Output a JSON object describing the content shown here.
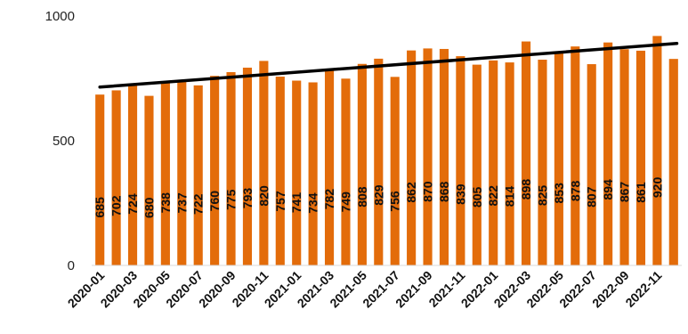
{
  "chart_data": {
    "type": "bar",
    "title": "",
    "xlabel": "",
    "ylabel": "",
    "ylim": [
      0,
      1000
    ],
    "yticks": [
      0,
      500,
      1000
    ],
    "grid": false,
    "legend": "none",
    "bar_color": "#E36C0A",
    "trendline_color": "#000000",
    "trendline": {
      "type": "linear",
      "start": 715,
      "end": 890
    },
    "categories": [
      "2020-01",
      "2020-02",
      "2020-03",
      "2020-04",
      "2020-05",
      "2020-06",
      "2020-07",
      "2020-08",
      "2020-09",
      "2020-10",
      "2020-11",
      "2020-12",
      "2021-01",
      "2021-02",
      "2021-03",
      "2021-04",
      "2021-05",
      "2021-06",
      "2021-07",
      "2021-08",
      "2021-09",
      "2021-10",
      "2021-11",
      "2021-12",
      "2022-01",
      "2022-02",
      "2022-03",
      "2022-04",
      "2022-05",
      "2022-06",
      "2022-07",
      "2022-08",
      "2022-09",
      "2022-10",
      "2022-11",
      "2022-12"
    ],
    "tick_labels": [
      "2020-01",
      "2020-03",
      "2020-05",
      "2020-07",
      "2020-09",
      "2020-11",
      "2021-01",
      "2021-03",
      "2021-05",
      "2021-07",
      "2021-09",
      "2021-11",
      "2022-01",
      "2022-03",
      "2022-05",
      "2022-07",
      "2022-09",
      "2022-11"
    ],
    "values": [
      685,
      702,
      724,
      680,
      738,
      737,
      722,
      760,
      775,
      793,
      820,
      757,
      741,
      734,
      782,
      749,
      808,
      829,
      756,
      862,
      870,
      868,
      839,
      805,
      822,
      814,
      898,
      825,
      853,
      878,
      807,
      894,
      867,
      861,
      920,
      828
    ],
    "data_labels": [
      "685",
      "702",
      "724",
      "680",
      "738",
      "737",
      "722",
      "760",
      "775",
      "793",
      "820",
      "757",
      "741",
      "734",
      "782",
      "749",
      "808",
      "829",
      "756",
      "862",
      "870",
      "868",
      "839",
      "805",
      "822",
      "814",
      "898",
      "825",
      "853",
      "878",
      "807",
      "894",
      "867",
      "861",
      "920",
      ""
    ]
  }
}
